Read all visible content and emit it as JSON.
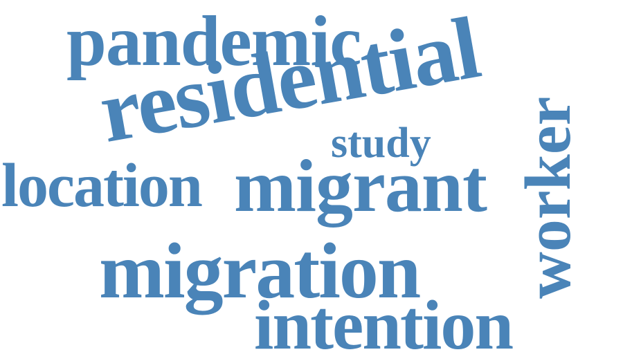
{
  "word_color": "#4A84B8",
  "words": {
    "pandemic": "pandemic",
    "residential": "residential",
    "study": "study",
    "location": "location",
    "migrant": "migrant",
    "worker": "worker",
    "migration": "migration",
    "intention": "intention"
  }
}
